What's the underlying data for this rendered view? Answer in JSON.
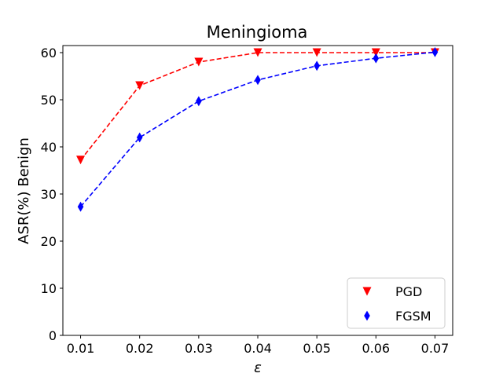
{
  "chart_data": {
    "type": "line",
    "title": "Meningioma",
    "xlabel": "ε",
    "ylabel": "ASR(%) Benign",
    "x": [
      0.01,
      0.02,
      0.03,
      0.04,
      0.05,
      0.06,
      0.07
    ],
    "x_tick_labels": [
      "0.01",
      "0.02",
      "0.03",
      "0.04",
      "0.05",
      "0.06",
      "0.07"
    ],
    "y_ticks": [
      0,
      10,
      20,
      30,
      40,
      50,
      60
    ],
    "y_tick_labels": [
      "0",
      "10",
      "20",
      "30",
      "40",
      "50",
      "60"
    ],
    "xlim": [
      0.007,
      0.073
    ],
    "ylim": [
      0,
      61.5
    ],
    "grid": false,
    "legend_position": "lower-right",
    "series": [
      {
        "name": "PGD",
        "values": [
          37.2,
          53.0,
          58.0,
          60.0,
          60.0,
          60.0,
          60.0
        ],
        "color": "#ff0000",
        "marker": "triangle-down",
        "line_style": "dashed"
      },
      {
        "name": "FGSM",
        "values": [
          27.3,
          42.0,
          49.7,
          54.2,
          57.2,
          58.8,
          60.1
        ],
        "color": "#0000ff",
        "marker": "thin-diamond",
        "line_style": "dashed"
      }
    ]
  }
}
